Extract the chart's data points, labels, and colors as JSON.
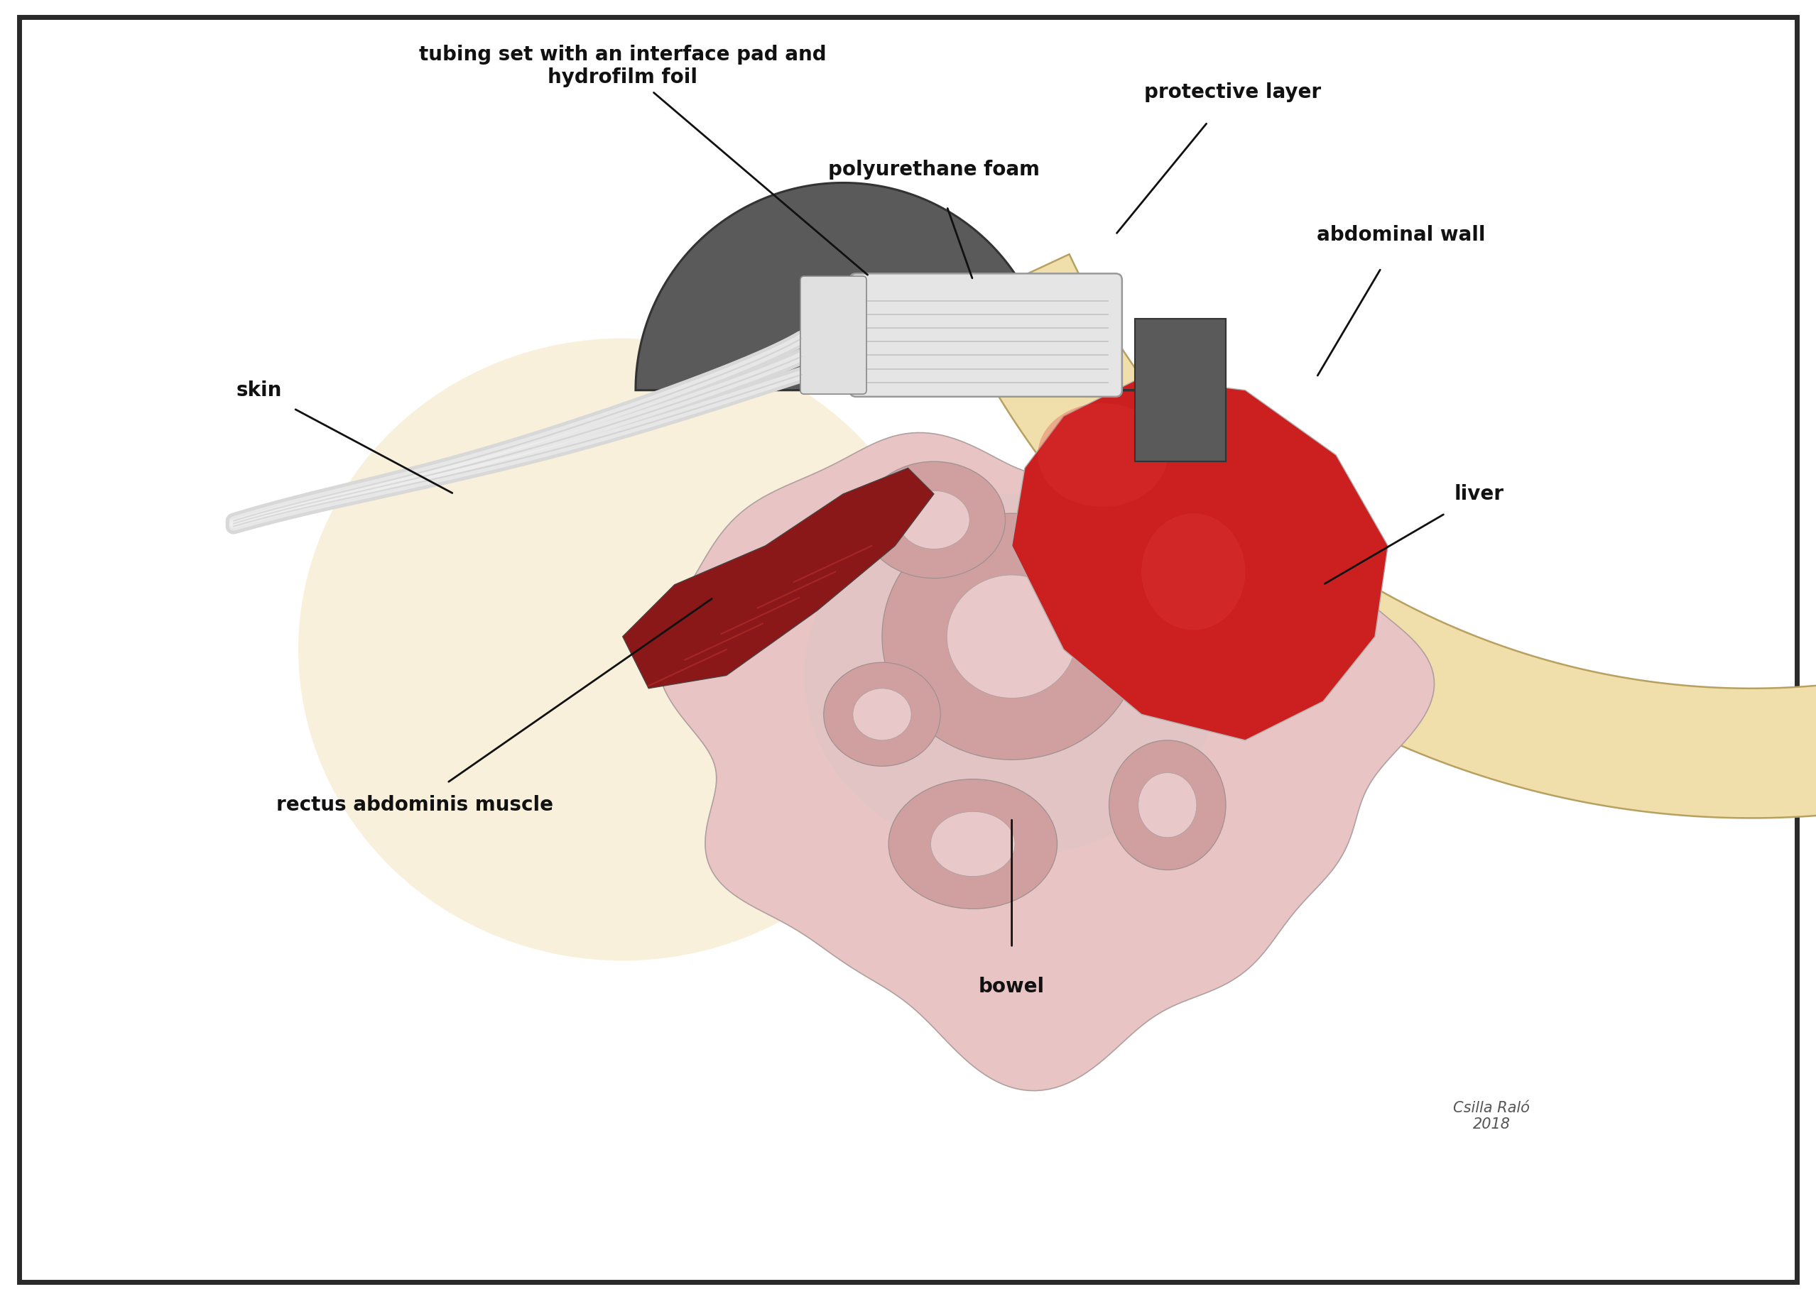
{
  "background": "#ffffff",
  "border_color": "#2a2a2a",
  "colors": {
    "device_dark": "#5a5a5a",
    "device_rim": "#333333",
    "foam_pad": "#e5e5e5",
    "foam_line": "#c0c0c0",
    "tube_gray": "#d8d8d8",
    "tube_highlight": "#f2f2f2",
    "tube_shadow": "#aaaaaa",
    "abdominal_wall_fill": "#f0dfaa",
    "abdominal_wall_edge": "#b8a060",
    "skin_bg": "#f5e8c8",
    "bowel_fill": "#e8c4c4",
    "bowel_loop": "#d0a0a0",
    "bowel_loop_inner": "#e8c8c8",
    "bowel_gray": "#c8b8b8",
    "liver_fill": "#cc2020",
    "liver_fill2": "#dd3333",
    "muscle_fill": "#8b1818",
    "muscle_stripe": "#aa2828",
    "label_color": "#111111"
  },
  "labels": {
    "tubing": "tubing set with an interface pad and\nhydrofilm foil",
    "protective_layer": "protective layer",
    "polyurethane_foam": "polyurethane foam",
    "abdominal_wall": "abdominal wall",
    "skin": "skin",
    "liver": "liver",
    "rectus": "rectus abdominis muscle",
    "bowel": "bowel"
  },
  "signature": "Csilla Raló\n2018",
  "label_fontsize": 20,
  "sig_fontsize": 15
}
